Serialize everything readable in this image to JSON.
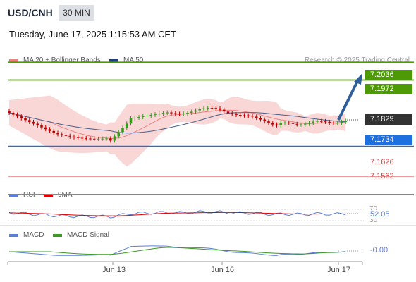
{
  "header": {
    "pair": "USD/CNH",
    "timeframe": "30 MIN",
    "timestamp": "Tuesday, June 17, 2025 1:15:53 AM CET"
  },
  "legend": {
    "main": [
      {
        "label": "MA 20 + Bollinger Bands",
        "color": "#f08080"
      },
      {
        "label": "MA 50",
        "color": "#1f3f7a"
      }
    ],
    "rsi": [
      {
        "label": "RSI",
        "color": "#5a7fd6"
      },
      {
        "label": "9MA",
        "color": "#e00000"
      }
    ],
    "macd": [
      {
        "label": "MACD",
        "color": "#5a7fd6"
      },
      {
        "label": "MACD Signal",
        "color": "#3a9a20"
      }
    ]
  },
  "copyright": "Research © 2025 Trading Central",
  "price_levels": {
    "r2": {
      "value": "7.2036",
      "color": "#4e9a06"
    },
    "r1": {
      "value": "7.1972",
      "color": "#4e9a06"
    },
    "last": {
      "value": "7.1829",
      "color": "#333333"
    },
    "pivot": {
      "value": "7.1734",
      "color": "#1e6fe0"
    },
    "s1": {
      "value": "7.1626",
      "color": "#e06060"
    },
    "s2": {
      "value": "7.1562",
      "color": "#e06060"
    }
  },
  "rsi": {
    "value": "52.05",
    "levels": [
      "70",
      "30"
    ]
  },
  "macd": {
    "value": "-0.00"
  },
  "x_axis": [
    "Jun 13",
    "Jun 16",
    "Jun 17"
  ],
  "colors": {
    "up": "#3a9a20",
    "down": "#c00000",
    "band": "#f8d0d0",
    "ma20": "#f08080",
    "ma50": "#4a5f8a",
    "arrow": "#2f5f9a"
  }
}
